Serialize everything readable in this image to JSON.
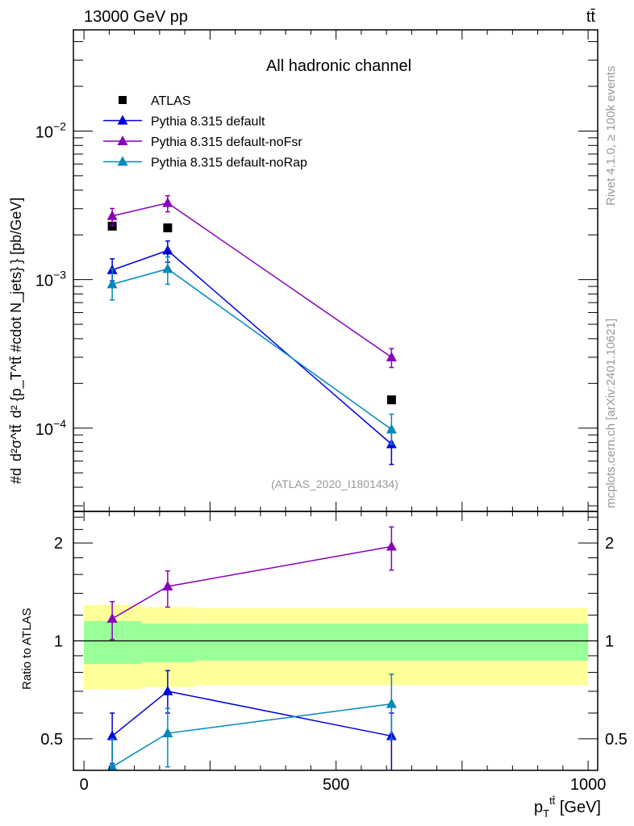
{
  "header": {
    "energy_label": "13000 GeV pp",
    "process_label": "tt̄"
  },
  "side_labels": {
    "rivet": "Rivet 4.1.0, ≥ 100k events",
    "mcplots": "mcplots.cern.ch [arXiv:2401.10621]"
  },
  "chart_data": [
    {
      "type": "line",
      "panel": "main",
      "title": "All hadronic channel",
      "analysis_label": "(ATLAS_2020_I1801434)",
      "ylabel_parts": {
        "numer": "#d",
        "frac_top": "d²σ^tt̄",
        "frac_bottom": "d² {p_T^tt̄ #cdot N_jets}",
        "unit": "} [pb/GeV]"
      },
      "yscale": "log",
      "ylim": [
        2.75e-05,
        0.048
      ],
      "xlim": [
        -21,
        1019
      ],
      "ytick_labels": [
        {
          "value": 0.01,
          "label": "10",
          "exp": "−2"
        },
        {
          "value": 0.001,
          "label": "10",
          "exp": "−3"
        },
        {
          "value": 0.0001,
          "label": "10",
          "exp": "−4"
        }
      ],
      "legend_position": "top-left",
      "x": [
        56,
        166,
        610
      ],
      "series": [
        {
          "name": "ATLAS",
          "color": "#000000",
          "marker": "square",
          "line": false,
          "values": [
            0.00229,
            0.00223,
            0.000155
          ],
          "err_lo": [
            0.00229,
            0.00223,
            0.000155
          ],
          "err_hi": [
            0.00229,
            0.00223,
            0.000155
          ]
        },
        {
          "name": "Pythia 8.315 default",
          "color": "#0000dd",
          "marker": "triangle",
          "line": true,
          "values": [
            0.00116,
            0.00157,
            7.8e-05
          ],
          "err_lo": [
            0.00098,
            0.00131,
            5.7e-05
          ],
          "err_hi": [
            0.00138,
            0.00182,
            0.0001
          ]
        },
        {
          "name": "Pythia 8.315 default-noFsr",
          "color": "#8800bb",
          "marker": "triangle",
          "line": true,
          "values": [
            0.00268,
            0.00328,
            0.0003
          ],
          "err_lo": [
            0.00231,
            0.00286,
            0.000256
          ],
          "err_hi": [
            0.00301,
            0.00367,
            0.000343
          ]
        },
        {
          "name": "Pythia 8.315 default-noRap",
          "color": "#0088bb",
          "marker": "triangle",
          "line": true,
          "values": [
            0.00093,
            0.00118,
            9.8e-05
          ],
          "err_lo": [
            0.00073,
            0.00093,
            7.8e-05
          ],
          "err_hi": [
            0.00118,
            0.00142,
            0.000124
          ]
        }
      ]
    },
    {
      "type": "line",
      "panel": "ratio",
      "ylabel": "Ratio to ATLAS",
      "xlabel": "p_T^tt̄ [GeV]",
      "xlabel_parts": {
        "main": "p",
        "sub": "T",
        "sup": "tt̄",
        "unit": " [GeV]"
      },
      "yscale": "log",
      "ylim": [
        0.4,
        2.5
      ],
      "xlim": [
        -21,
        1019
      ],
      "ytick_labels": [
        {
          "value": 0.5,
          "label": "0.5"
        },
        {
          "value": 1,
          "label": "1"
        },
        {
          "value": 2,
          "label": "2"
        }
      ],
      "xtick_labels": [
        {
          "value": 0,
          "label": "0"
        },
        {
          "value": 500,
          "label": "500"
        },
        {
          "value": 1000,
          "label": "1000"
        }
      ],
      "bins": [
        [
          0,
          115
        ],
        [
          115,
          220
        ],
        [
          220,
          1000
        ]
      ],
      "band_stat": {
        "color": "#99ff99",
        "lo": [
          0.85,
          0.86,
          0.87
        ],
        "hi": [
          1.15,
          1.13,
          1.13
        ]
      },
      "band_total": {
        "color": "#ffff99",
        "lo": [
          0.71,
          0.72,
          0.73
        ],
        "hi": [
          1.29,
          1.27,
          1.26
        ]
      },
      "x": [
        56,
        166,
        610
      ],
      "series": [
        {
          "name": "Pythia 8.315 default",
          "color": "#0000dd",
          "values": [
            0.51,
            0.7,
            0.51
          ],
          "err_lo": [
            0.42,
            0.6,
            0.35
          ],
          "err_hi": [
            0.6,
            0.81,
            0.6
          ]
        },
        {
          "name": "Pythia 8.315 default-noFsr",
          "color": "#8800bb",
          "values": [
            1.17,
            1.47,
            1.95
          ],
          "err_lo": [
            1.01,
            1.27,
            1.65
          ],
          "err_hi": [
            1.32,
            1.64,
            2.24
          ]
        },
        {
          "name": "Pythia 8.315 default-noRap",
          "color": "#0088bb",
          "values": [
            0.41,
            0.52,
            0.64
          ],
          "err_lo": [
            0.35,
            0.41,
            0.5
          ],
          "err_hi": [
            0.5,
            0.62,
            0.79
          ]
        }
      ]
    }
  ]
}
